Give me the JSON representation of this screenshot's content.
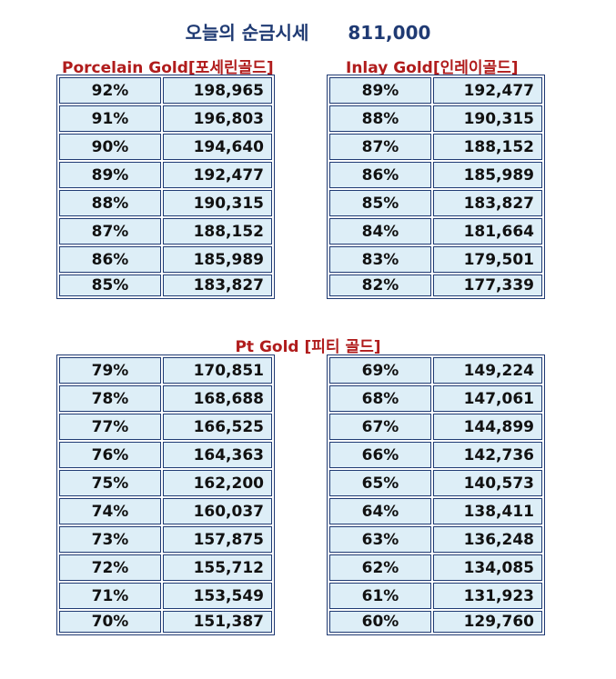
{
  "header": {
    "title": "오늘의 순금시세",
    "price": "811,000"
  },
  "sections": {
    "porcelain": {
      "title": "Porcelain Gold[포세린골드]"
    },
    "inlay": {
      "title": "Inlay Gold[인레이골드]"
    },
    "pt": {
      "title": "Pt Gold [피티 골드]"
    }
  },
  "tables": {
    "porcelain": [
      {
        "pct": "92%",
        "price": "198,965"
      },
      {
        "pct": "91%",
        "price": "196,803"
      },
      {
        "pct": "90%",
        "price": "194,640"
      },
      {
        "pct": "89%",
        "price": "192,477"
      },
      {
        "pct": "88%",
        "price": "190,315"
      },
      {
        "pct": "87%",
        "price": "188,152"
      },
      {
        "pct": "86%",
        "price": "185,989"
      },
      {
        "pct": "85%",
        "price": "183,827"
      }
    ],
    "inlay": [
      {
        "pct": "89%",
        "price": "192,477"
      },
      {
        "pct": "88%",
        "price": "190,315"
      },
      {
        "pct": "87%",
        "price": "188,152"
      },
      {
        "pct": "86%",
        "price": "185,989"
      },
      {
        "pct": "85%",
        "price": "183,827"
      },
      {
        "pct": "84%",
        "price": "181,664"
      },
      {
        "pct": "83%",
        "price": "179,501"
      },
      {
        "pct": "82%",
        "price": "177,339"
      }
    ],
    "pt_left": [
      {
        "pct": "79%",
        "price": "170,851"
      },
      {
        "pct": "78%",
        "price": "168,688"
      },
      {
        "pct": "77%",
        "price": "166,525"
      },
      {
        "pct": "76%",
        "price": "164,363"
      },
      {
        "pct": "75%",
        "price": "162,200"
      },
      {
        "pct": "74%",
        "price": "160,037"
      },
      {
        "pct": "73%",
        "price": "157,875"
      },
      {
        "pct": "72%",
        "price": "155,712"
      },
      {
        "pct": "71%",
        "price": "153,549"
      },
      {
        "pct": "70%",
        "price": "151,387"
      }
    ],
    "pt_right": [
      {
        "pct": "69%",
        "price": "149,224"
      },
      {
        "pct": "68%",
        "price": "147,061"
      },
      {
        "pct": "67%",
        "price": "144,899"
      },
      {
        "pct": "66%",
        "price": "142,736"
      },
      {
        "pct": "65%",
        "price": "140,573"
      },
      {
        "pct": "64%",
        "price": "138,411"
      },
      {
        "pct": "63%",
        "price": "136,248"
      },
      {
        "pct": "62%",
        "price": "134,085"
      },
      {
        "pct": "61%",
        "price": "131,923"
      },
      {
        "pct": "60%",
        "price": "129,760"
      }
    ]
  }
}
